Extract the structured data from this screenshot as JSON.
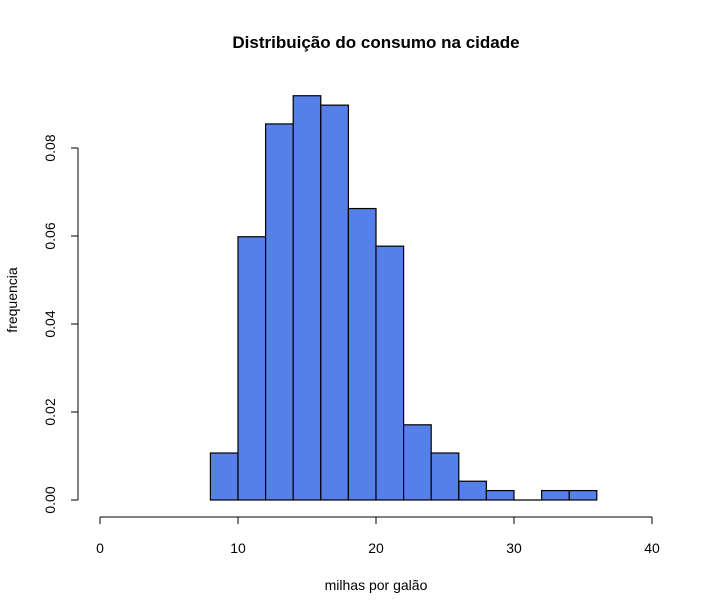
{
  "chart_data": {
    "type": "bar",
    "title": "Distribuição do consumo na cidade",
    "xlabel": "milhas por galão",
    "ylabel": "frequencia",
    "bin_edges": [
      8,
      10,
      12,
      14,
      16,
      18,
      20,
      22,
      24,
      26,
      28,
      30,
      32,
      34,
      36
    ],
    "values": [
      0.01068,
      0.05983,
      0.08547,
      0.09188,
      0.08974,
      0.06624,
      0.05769,
      0.01709,
      0.01068,
      0.00427,
      0.00214,
      0,
      0.00214,
      0.00214
    ],
    "xlim": [
      0,
      40
    ],
    "ylim": [
      0,
      0.08
    ],
    "xticks": [
      "0",
      "10",
      "20",
      "30",
      "40"
    ],
    "yticks": [
      "0.00",
      "0.02",
      "0.04",
      "0.06",
      "0.08"
    ],
    "grid": false,
    "bar_color": "#5580E9"
  }
}
